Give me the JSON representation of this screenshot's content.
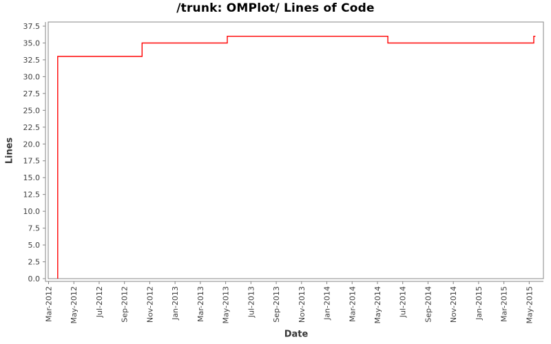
{
  "chart_data": {
    "type": "line",
    "subtype": "step-after",
    "title": "/trunk: OMPlot/ Lines of Code",
    "xlabel": "Date",
    "ylabel": "Lines",
    "line_color": "#ff0000",
    "frame_color": "#848484",
    "grid": false,
    "legend": "none",
    "ylim": [
      0.0,
      37.5
    ],
    "y_ticks": [
      37.5,
      35.0,
      32.5,
      30.0,
      27.5,
      25.0,
      22.5,
      20.0,
      17.5,
      15.0,
      12.5,
      10.0,
      7.5,
      5.0,
      2.5,
      0.0
    ],
    "x_tick_labels": [
      "Mar-2012",
      "May-2012",
      "Jul-2012",
      "Sep-2012",
      "Nov-2012",
      "Jan-2013",
      "Mar-2013",
      "May-2013",
      "Jul-2013",
      "Sep-2013",
      "Nov-2013",
      "Jan-2014",
      "Mar-2014",
      "May-2014",
      "Jul-2014",
      "Sep-2014",
      "Nov-2014",
      "Jan-2015",
      "Mar-2015",
      "May-2015"
    ],
    "start_value": 0,
    "steps": [
      {
        "date": "2012-03-23",
        "value": 33
      },
      {
        "date": "2012-10-13",
        "value": 35
      },
      {
        "date": "2013-05-05",
        "value": 36
      },
      {
        "date": "2014-05-26",
        "value": 35
      },
      {
        "date": "2015-05-12",
        "value": 36
      }
    ],
    "end_date": "2015-05-16"
  }
}
